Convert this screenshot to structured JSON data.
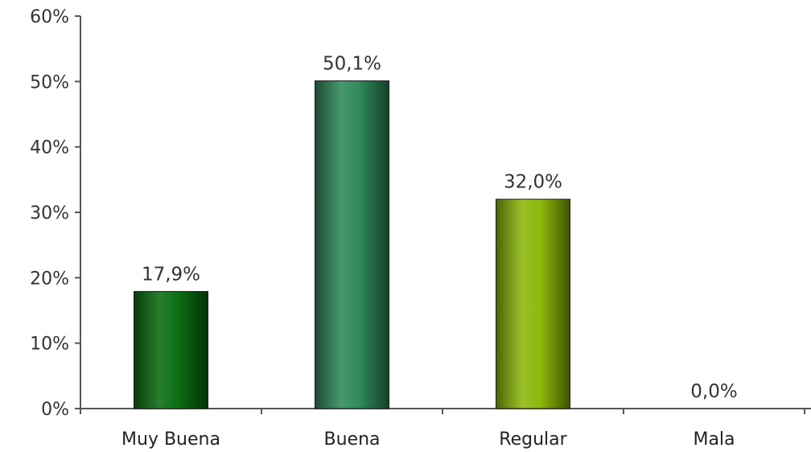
{
  "chart_data": {
    "type": "bar",
    "categories": [
      "Muy Buena",
      "Buena",
      "Regular",
      "Mala"
    ],
    "values": [
      17.9,
      50.1,
      32.0,
      0.0
    ],
    "data_labels": [
      "17,9%",
      "50,1%",
      "32,0%",
      "0,0%"
    ],
    "bar_colors": [
      "#0a6e12",
      "#2e8b5a",
      "#8cb80a",
      "#8cb80a"
    ],
    "ylim": [
      0,
      60
    ],
    "yticks": [
      0,
      10,
      20,
      30,
      40,
      50,
      60
    ],
    "ytick_labels": [
      "0%",
      "10%",
      "20%",
      "30%",
      "40%",
      "50%",
      "60%"
    ],
    "title": "",
    "xlabel": "",
    "ylabel": "",
    "grid": false,
    "legend": "none"
  }
}
